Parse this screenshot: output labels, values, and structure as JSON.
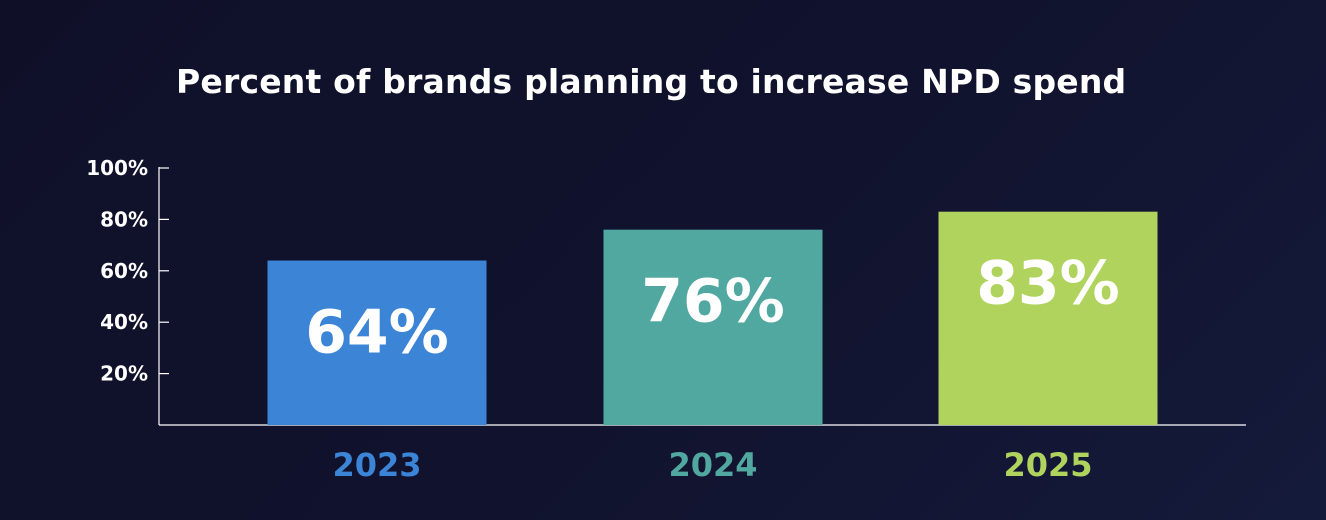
{
  "chart_data": {
    "type": "bar",
    "title": "Percent of brands planning to increase NPD spend",
    "categories": [
      "2023",
      "2024",
      "2025"
    ],
    "values": [
      64,
      76,
      83
    ],
    "data_labels": [
      "64%",
      "76%",
      "83%"
    ],
    "y_ticks": [
      20,
      40,
      60,
      80,
      100
    ],
    "y_tick_labels": [
      "20%",
      "40%",
      "60%",
      "80%",
      "100%"
    ],
    "ylim": [
      0,
      100
    ],
    "grid": false,
    "legend": "none",
    "colors": [
      "#3b84d6",
      "#51a8a0",
      "#b0d35e"
    ]
  },
  "colors": {
    "background": "#11132e",
    "text": "#ffffff",
    "axis": "#ffffff"
  }
}
